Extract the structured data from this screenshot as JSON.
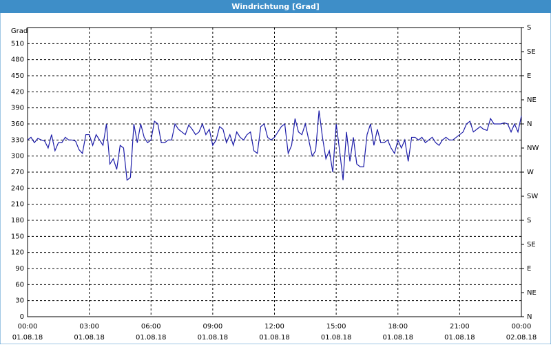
{
  "chart_data": {
    "type": "line",
    "title": "Windrichtung [Grad]",
    "ylabel": "Grad",
    "x": [
      0,
      10,
      20,
      30,
      40,
      50,
      60,
      70,
      80,
      90,
      100,
      110,
      120,
      130,
      140,
      150,
      160,
      170,
      180,
      190,
      200,
      210,
      220,
      230,
      240,
      250,
      260,
      270,
      280,
      290,
      300,
      310,
      320,
      330,
      340,
      350,
      360,
      370,
      380,
      390,
      400,
      410,
      420,
      430,
      440,
      450,
      460,
      470,
      480,
      490,
      500,
      510,
      520,
      530,
      540,
      550,
      560,
      570,
      580,
      590,
      600,
      610,
      620,
      630,
      640,
      650,
      660,
      670,
      680,
      690,
      700,
      710,
      720,
      730,
      740,
      750,
      760,
      770,
      780,
      790,
      800,
      810,
      820,
      830,
      840,
      850,
      860,
      870,
      880,
      890,
      900,
      910,
      920,
      930,
      940,
      950,
      960,
      970,
      980,
      990,
      1000,
      1010,
      1020,
      1030,
      1040,
      1050,
      1060,
      1070,
      1080,
      1090,
      1100,
      1110,
      1120,
      1130,
      1140,
      1150,
      1160,
      1170,
      1180,
      1190,
      1200,
      1210,
      1220,
      1230,
      1240,
      1250,
      1260,
      1270,
      1280,
      1290,
      1300,
      1310,
      1320,
      1330,
      1340,
      1350,
      1360,
      1370,
      1380,
      1390,
      1400,
      1410,
      1420,
      1430,
      1440
    ],
    "series": [
      {
        "name": "Windrichtung",
        "color": "#1c1ca8",
        "values": [
          330,
          335,
          325,
          333,
          330,
          328,
          315,
          340,
          310,
          325,
          325,
          335,
          330,
          330,
          328,
          312,
          305,
          340,
          340,
          320,
          340,
          330,
          320,
          360,
          285,
          295,
          275,
          320,
          315,
          255,
          260,
          360,
          325,
          360,
          335,
          325,
          330,
          365,
          360,
          325,
          325,
          330,
          330,
          360,
          350,
          345,
          340,
          358,
          350,
          340,
          345,
          360,
          340,
          350,
          320,
          330,
          355,
          350,
          325,
          340,
          320,
          345,
          335,
          330,
          340,
          345,
          310,
          305,
          355,
          360,
          335,
          330,
          335,
          345,
          355,
          360,
          305,
          320,
          370,
          345,
          340,
          360,
          330,
          300,
          310,
          385,
          335,
          295,
          310,
          270,
          360,
          310,
          255,
          345,
          290,
          335,
          285,
          280,
          280,
          340,
          360,
          320,
          350,
          325,
          325,
          330,
          315,
          305,
          330,
          315,
          330,
          290,
          335,
          335,
          330,
          335,
          325,
          330,
          335,
          325,
          320,
          330,
          335,
          330,
          330,
          335,
          340,
          345,
          360,
          365,
          345,
          350,
          355,
          350,
          348,
          370,
          360,
          360,
          360,
          362,
          360,
          345,
          360,
          345,
          375
        ]
      }
    ],
    "xlim": [
      0,
      1440
    ],
    "xticks": [
      {
        "value": 0,
        "label": "00:00",
        "date": "01.08.18"
      },
      {
        "value": 180,
        "label": "03:00",
        "date": "01.08.18"
      },
      {
        "value": 360,
        "label": "06:00",
        "date": "01.08.18"
      },
      {
        "value": 540,
        "label": "09:00",
        "date": "01.08.18"
      },
      {
        "value": 720,
        "label": "12:00",
        "date": "01.08.18"
      },
      {
        "value": 900,
        "label": "15:00",
        "date": "01.08.18"
      },
      {
        "value": 1080,
        "label": "18:00",
        "date": "01.08.18"
      },
      {
        "value": 1260,
        "label": "21:00",
        "date": "01.08.18"
      },
      {
        "value": 1440,
        "label": "00:00",
        "date": "02.08.18"
      }
    ],
    "ylim": [
      0,
      540
    ],
    "yticks": [
      0,
      30,
      60,
      90,
      120,
      150,
      180,
      210,
      240,
      270,
      300,
      330,
      360,
      390,
      420,
      450,
      480,
      510
    ],
    "y2lim": [
      0,
      540
    ],
    "y2ticks": [
      {
        "value": 0,
        "label": "N"
      },
      {
        "value": 45,
        "label": "NE"
      },
      {
        "value": 90,
        "label": "E"
      },
      {
        "value": 135,
        "label": "SE"
      },
      {
        "value": 180,
        "label": "S"
      },
      {
        "value": 225,
        "label": "SW"
      },
      {
        "value": 270,
        "label": "W"
      },
      {
        "value": 315,
        "label": "NW"
      },
      {
        "value": 360,
        "label": "N"
      },
      {
        "value": 405,
        "label": "NE"
      },
      {
        "value": 450,
        "label": "E"
      },
      {
        "value": 495,
        "label": "SE"
      },
      {
        "value": 540,
        "label": "S"
      }
    ],
    "grid": true
  }
}
